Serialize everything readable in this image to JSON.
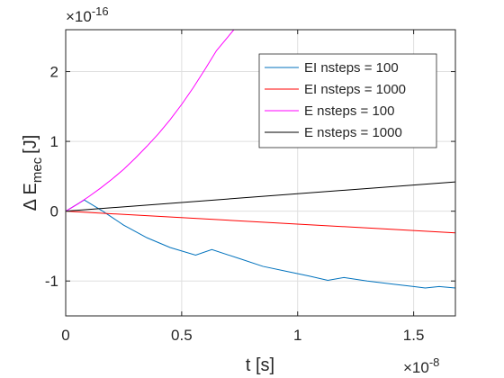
{
  "chart_data": {
    "type": "line",
    "xlabel": "t [s]",
    "ylabel": "Δ E",
    "ylabel_subscript": "mec",
    "ylabel_unit": "[J]",
    "x_multiplier": "×10",
    "x_exponent": "-8",
    "y_multiplier": "×10",
    "y_exponent": "-16",
    "xlim": [
      0,
      1.68
    ],
    "ylim": [
      -1.5,
      2.6
    ],
    "x_ticks": [
      0,
      0.5,
      1,
      1.5
    ],
    "x_tick_labels": [
      "0",
      "0.5",
      "1",
      "1.5"
    ],
    "y_ticks": [
      -1,
      0,
      1,
      2
    ],
    "y_tick_labels": [
      "-1",
      "0",
      "1",
      "2"
    ],
    "grid": true,
    "legend_position": "top-right",
    "series": [
      {
        "name": "EI nsteps = 100",
        "color": "#0072bd",
        "x": [
          0,
          0.08,
          0.16,
          0.25,
          0.35,
          0.45,
          0.56,
          0.63,
          0.75,
          0.85,
          0.95,
          1.05,
          1.13,
          1.2,
          1.3,
          1.4,
          1.5,
          1.55,
          1.61,
          1.68
        ],
        "y": [
          0,
          0.16,
          0.0,
          -0.2,
          -0.38,
          -0.52,
          -0.63,
          -0.55,
          -0.68,
          -0.79,
          -0.86,
          -0.93,
          -0.99,
          -0.95,
          -1.0,
          -1.04,
          -1.08,
          -1.1,
          -1.08,
          -1.1
        ]
      },
      {
        "name": "EI nsteps = 1000",
        "color": "#ff0000",
        "x": [
          0,
          1.68
        ],
        "y": [
          0,
          -0.31
        ]
      },
      {
        "name": "E nsteps = 100",
        "color": "#ff00ff",
        "x": [
          0,
          0.05,
          0.1,
          0.15,
          0.2,
          0.25,
          0.3,
          0.35,
          0.4,
          0.45,
          0.5,
          0.55,
          0.6,
          0.65,
          0.7,
          0.725
        ],
        "y": [
          0,
          0.1,
          0.21,
          0.33,
          0.46,
          0.6,
          0.76,
          0.93,
          1.11,
          1.31,
          1.53,
          1.77,
          2.03,
          2.3,
          2.5,
          2.6
        ]
      },
      {
        "name": "E nsteps = 1000",
        "color": "#000000",
        "x": [
          0,
          1.68
        ],
        "y": [
          0,
          0.42
        ]
      }
    ]
  }
}
